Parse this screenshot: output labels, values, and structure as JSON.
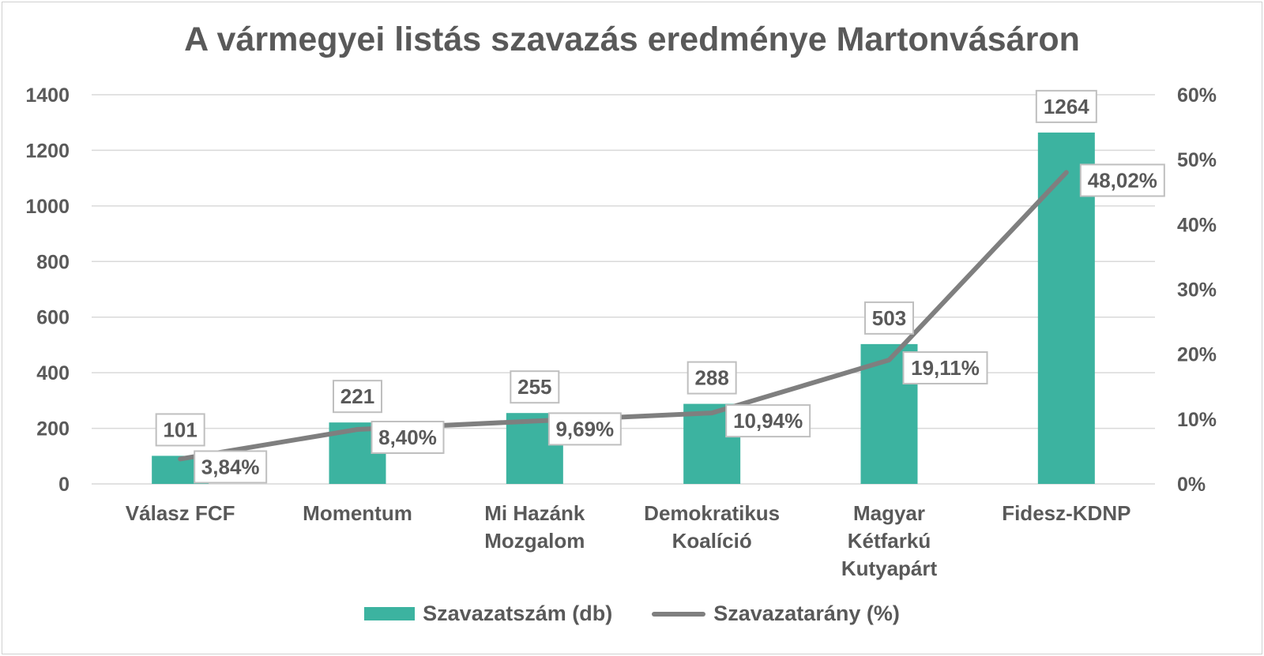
{
  "chart_data": {
    "type": "bar",
    "title": "A vármegyei listás szavazás eredménye Martonvásáron",
    "categories": [
      [
        "Válasz FCF"
      ],
      [
        "Momentum"
      ],
      [
        "Mi Hazánk",
        "Mozgalom"
      ],
      [
        "Demokratikus",
        "Koalíció"
      ],
      [
        "Magyar",
        "Kétfarkú",
        "Kutyapárt"
      ],
      [
        "Fidesz-KDNP"
      ]
    ],
    "series": [
      {
        "name": "Szavazatszám (db)",
        "type": "bar",
        "axis": "left",
        "color": "#3cb3a0",
        "values": [
          101,
          221,
          255,
          288,
          503,
          1264
        ],
        "labels": [
          "101",
          "221",
          "255",
          "288",
          "503",
          "1264"
        ]
      },
      {
        "name": "Szavazatarány (%)",
        "type": "line",
        "axis": "right",
        "color": "#7f7f7f",
        "values": [
          3.84,
          8.4,
          9.69,
          10.94,
          19.11,
          48.02
        ],
        "labels": [
          "3,84%",
          "8,40%",
          "9,69%",
          "10,94%",
          "19,11%",
          "48,02%"
        ]
      }
    ],
    "y_left": {
      "ylim": [
        0,
        1400
      ],
      "ticks": [
        0,
        200,
        400,
        600,
        800,
        1000,
        1200,
        1400
      ],
      "tick_labels": [
        "0",
        "200",
        "400",
        "600",
        "800",
        "1000",
        "1200",
        "1400"
      ]
    },
    "y_right": {
      "ylim": [
        0,
        60
      ],
      "ticks": [
        0,
        10,
        20,
        30,
        40,
        50,
        60
      ],
      "tick_labels": [
        "0%",
        "10%",
        "20%",
        "30%",
        "40%",
        "50%",
        "60%"
      ]
    },
    "grid": true,
    "legend_position": "bottom",
    "colors": {
      "grid": "#d9d9d9",
      "text": "#595959",
      "label_border": "#bfbfbf"
    }
  }
}
